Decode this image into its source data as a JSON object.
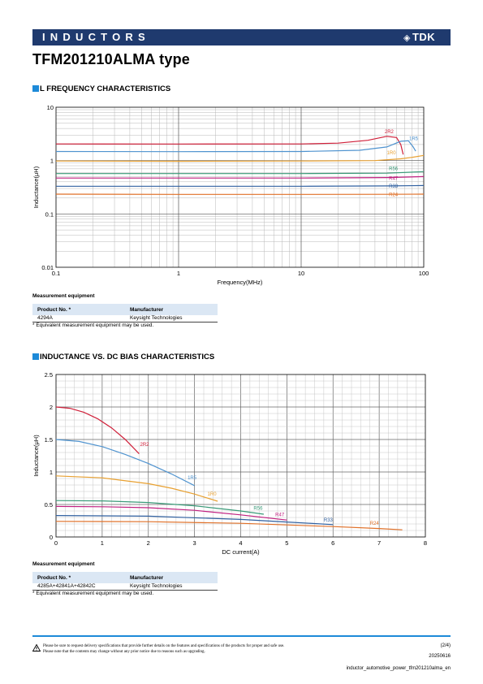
{
  "header": {
    "title": "INDUCTORS",
    "logo": "TDK",
    "logo_mark": "◈"
  },
  "product_title": "TFM201210ALMA type",
  "section1": {
    "title": "L FREQUENCY CHARACTERISTICS"
  },
  "section2": {
    "title": "INDUCTANCE VS. DC BIAS CHARACTERISTICS"
  },
  "chart_data": [
    {
      "type": "line",
      "xscale": "log",
      "yscale": "log",
      "xlabel": "Frequency(MHz)",
      "ylabel": "Inductance(μH)",
      "xlim": [
        0.1,
        100
      ],
      "ylim": [
        0.01,
        10
      ],
      "xticks": [
        "0.1",
        "1",
        "10",
        "100"
      ],
      "yticks": [
        "0.01",
        "0.1",
        "1",
        "10"
      ],
      "grid": true,
      "series": [
        {
          "name": "2R2",
          "color": "#d0203a",
          "points": [
            [
              0.1,
              2.05
            ],
            [
              1,
              2.04
            ],
            [
              10,
              2.05
            ],
            [
              20,
              2.12
            ],
            [
              35,
              2.4
            ],
            [
              50,
              2.85
            ],
            [
              60,
              2.7
            ],
            [
              65,
              2.0
            ],
            [
              68,
              1.3
            ]
          ]
        },
        {
          "name": "1R5",
          "color": "#4f93cf",
          "points": [
            [
              0.1,
              1.48
            ],
            [
              1,
              1.47
            ],
            [
              10,
              1.48
            ],
            [
              30,
              1.56
            ],
            [
              50,
              1.8
            ],
            [
              65,
              2.3
            ],
            [
              75,
              2.35
            ],
            [
              82,
              1.8
            ],
            [
              86,
              1.5
            ]
          ]
        },
        {
          "name": "1R0",
          "color": "#e8a030",
          "points": [
            [
              0.1,
              0.98
            ],
            [
              1,
              0.97
            ],
            [
              10,
              0.98
            ],
            [
              40,
              1.0
            ],
            [
              65,
              1.08
            ],
            [
              80,
              1.15
            ],
            [
              100,
              1.25
            ]
          ]
        },
        {
          "name": "R56",
          "color": "#3a9a78",
          "points": [
            [
              0.1,
              0.57
            ],
            [
              1,
              0.57
            ],
            [
              10,
              0.57
            ],
            [
              50,
              0.58
            ],
            [
              100,
              0.62
            ]
          ]
        },
        {
          "name": "R47",
          "color": "#c02080",
          "points": [
            [
              0.1,
              0.47
            ],
            [
              1,
              0.47
            ],
            [
              10,
              0.47
            ],
            [
              50,
              0.48
            ],
            [
              100,
              0.5
            ]
          ]
        },
        {
          "name": "R33",
          "color": "#3060a0",
          "points": [
            [
              0.1,
              0.33
            ],
            [
              1,
              0.33
            ],
            [
              10,
              0.33
            ],
            [
              50,
              0.335
            ],
            [
              100,
              0.34
            ]
          ]
        },
        {
          "name": "R24",
          "color": "#e07028",
          "points": [
            [
              0.1,
              0.235
            ],
            [
              1,
              0.232
            ],
            [
              10,
              0.232
            ],
            [
              50,
              0.233
            ],
            [
              100,
              0.235
            ]
          ]
        }
      ],
      "labels": [
        {
          "text": "2R2",
          "series": "2R2",
          "x": 48,
          "y": 3.25
        },
        {
          "text": "1R5",
          "series": "1R5",
          "x": 76,
          "y": 2.4
        },
        {
          "text": "1R0",
          "series": "1R0",
          "x": 50,
          "y": 1.3
        },
        {
          "text": "R56",
          "series": "R56",
          "x": 52,
          "y": 0.66
        },
        {
          "text": "R47",
          "series": "R47",
          "x": 52,
          "y": 0.43
        },
        {
          "text": "R33",
          "series": "R33",
          "x": 52,
          "y": 0.31
        },
        {
          "text": "R24",
          "series": "R24",
          "x": 52,
          "y": 0.215
        }
      ]
    },
    {
      "type": "line",
      "xlabel": "DC current(A)",
      "ylabel": "Inductance(μH)",
      "xlim": [
        0,
        8
      ],
      "ylim": [
        0,
        2.5
      ],
      "xticks": [
        "0",
        "1",
        "2",
        "3",
        "4",
        "5",
        "6",
        "7",
        "8"
      ],
      "yticks": [
        "0",
        "0.5",
        "1",
        "1.5",
        "2",
        "2.5"
      ],
      "grid": true,
      "series": [
        {
          "name": "2R2",
          "color": "#d0203a",
          "points": [
            [
              0,
              2.0
            ],
            [
              0.3,
              1.98
            ],
            [
              0.6,
              1.92
            ],
            [
              0.9,
              1.82
            ],
            [
              1.2,
              1.68
            ],
            [
              1.5,
              1.5
            ],
            [
              1.8,
              1.28
            ]
          ]
        },
        {
          "name": "1R5",
          "color": "#4f93cf",
          "points": [
            [
              0,
              1.5
            ],
            [
              0.5,
              1.47
            ],
            [
              1,
              1.39
            ],
            [
              1.5,
              1.27
            ],
            [
              2,
              1.13
            ],
            [
              2.5,
              0.97
            ],
            [
              3,
              0.79
            ]
          ]
        },
        {
          "name": "1R0",
          "color": "#e8a030",
          "points": [
            [
              0,
              0.94
            ],
            [
              1,
              0.91
            ],
            [
              2,
              0.82
            ],
            [
              2.5,
              0.75
            ],
            [
              3,
              0.66
            ],
            [
              3.5,
              0.55
            ]
          ]
        },
        {
          "name": "R56",
          "color": "#3a9a78",
          "points": [
            [
              0,
              0.56
            ],
            [
              1,
              0.555
            ],
            [
              2,
              0.53
            ],
            [
              3,
              0.48
            ],
            [
              4,
              0.4
            ],
            [
              4.5,
              0.35
            ]
          ]
        },
        {
          "name": "R47",
          "color": "#c02080",
          "points": [
            [
              0,
              0.47
            ],
            [
              1,
              0.465
            ],
            [
              2,
              0.45
            ],
            [
              3,
              0.41
            ],
            [
              4,
              0.34
            ],
            [
              5,
              0.26
            ]
          ]
        },
        {
          "name": "R33",
          "color": "#3060a0",
          "points": [
            [
              0,
              0.33
            ],
            [
              2,
              0.32
            ],
            [
              4,
              0.27
            ],
            [
              5,
              0.23
            ],
            [
              6,
              0.19
            ]
          ]
        },
        {
          "name": "R24",
          "color": "#e07028",
          "points": [
            [
              0,
              0.24
            ],
            [
              2,
              0.235
            ],
            [
              4,
              0.21
            ],
            [
              5,
              0.185
            ],
            [
              6,
              0.16
            ],
            [
              7,
              0.13
            ],
            [
              7.5,
              0.11
            ]
          ]
        }
      ],
      "labels": [
        {
          "text": "2R2",
          "series": "2R2",
          "x": 1.82,
          "y": 1.4
        },
        {
          "text": "1R5",
          "series": "1R5",
          "x": 2.85,
          "y": 0.89
        },
        {
          "text": "1R0",
          "series": "1R0",
          "x": 3.28,
          "y": 0.64
        },
        {
          "text": "R56",
          "series": "R56",
          "x": 4.28,
          "y": 0.42
        },
        {
          "text": "R47",
          "series": "R47",
          "x": 4.75,
          "y": 0.32
        },
        {
          "text": "R33",
          "series": "R33",
          "x": 5.8,
          "y": 0.24
        },
        {
          "text": "R24",
          "series": "R24",
          "x": 6.8,
          "y": 0.19
        }
      ]
    }
  ],
  "measurement1": {
    "title": "Measurement equipment",
    "headers": {
      "product": "Product No. *",
      "manufacturer": "Manufacturer"
    },
    "rows": [
      {
        "product": "4294A",
        "manufacturer": "Keysight Technologies"
      }
    ],
    "note": "* Equivalent measurement equipment may be used."
  },
  "measurement2": {
    "title": "Measurement equipment",
    "headers": {
      "product": "Product No. *",
      "manufacturer": "Manufacturer"
    },
    "rows": [
      {
        "product": "4285A+42841A+42842C",
        "manufacturer": "Keysight Technologies"
      }
    ],
    "note": "* Equivalent measurement equipment may be used."
  },
  "footer": {
    "warning_icon": "warning-triangle-icon",
    "line1": "Please be sure to request delivery specifications that provide further details on the features and specifications of the products for proper and safe use.",
    "line2": "Please note that the contents may change without any prior notice due to reasons such as upgrading.",
    "page": "(2/4)",
    "date": "20250616",
    "doc_name": "inductor_automotive_power_tfm201210alma_en"
  }
}
